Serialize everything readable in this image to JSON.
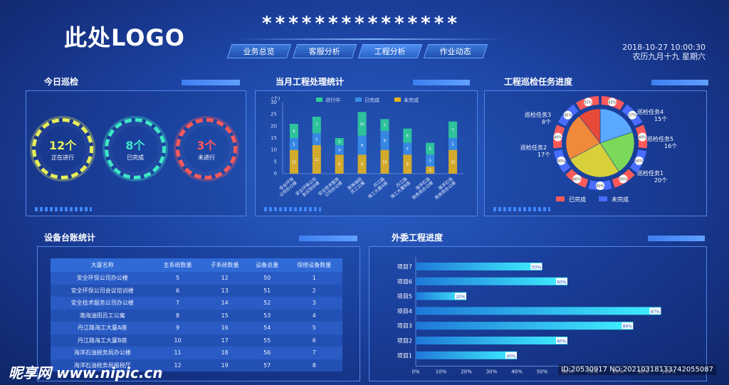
{
  "header": {
    "logo": "此处LOGO",
    "title": "***************",
    "nav": [
      "业务总览",
      "客服分析",
      "工程分析",
      "作业动态"
    ],
    "date": "2018-10-27  10:00:30",
    "lunar": "农历九月十九  星期六"
  },
  "inspection": {
    "title": "今日巡检",
    "gauges": [
      {
        "value": "12个",
        "label": "正在进行",
        "color": "#e9ef5a"
      },
      {
        "value": "8个",
        "label": "已完成",
        "color": "#3ee6c6"
      },
      {
        "value": "3个",
        "label": "未进行",
        "color": "#ff5a5a"
      }
    ]
  },
  "monthly": {
    "title": "当月工程处理统计",
    "unit": "(个)",
    "legend": [
      "进行中",
      "已完成",
      "未完成"
    ],
    "colors": [
      "#2fcf9a",
      "#3a8eea",
      "#e6b41e"
    ],
    "yticks": [
      "0",
      "5",
      "10",
      "15",
      "20",
      "25",
      "30"
    ],
    "chart_data": {
      "type": "bar",
      "categories": [
        "安全环保\n公司办公楼",
        "安全环保公司\n会议培训楼",
        "安全技术服务\n公司办公楼",
        "渤海油田\n员工公寓",
        "丹江路\n海工大厦A座",
        "丹江路\n海工大厦B座",
        "海洋石油\n税务局办公楼",
        "海洋石油\n税务局办公楼"
      ],
      "series": [
        {
          "name": "未完成",
          "values": [
            10,
            12,
            8,
            8,
            10,
            8,
            3,
            10
          ]
        },
        {
          "name": "已完成",
          "values": [
            5,
            5,
            4,
            8,
            8,
            5,
            5,
            5
          ]
        },
        {
          "name": "进行中",
          "values": [
            6,
            7,
            3,
            10,
            5,
            6,
            5,
            7
          ]
        }
      ],
      "ylim": [
        0,
        30
      ]
    }
  },
  "tasks": {
    "title": "工程巡检任务进度",
    "labels": [
      {
        "name": "巡检任务3",
        "count": "8个"
      },
      {
        "name": "巡检任务2",
        "count": "17个"
      },
      {
        "name": "巡检任务4",
        "count": "15个"
      },
      {
        "name": "巡检任务5",
        "count": "16个"
      },
      {
        "name": "巡检任务1",
        "count": "20个"
      }
    ],
    "legend": [
      "已完成",
      "未完成"
    ],
    "legend_colors": [
      "#ff5a5a",
      "#4a6cff"
    ],
    "chart_data": {
      "type": "pie",
      "categories": [
        "巡检任务4",
        "巡检任务5",
        "巡检任务1",
        "巡检任务2",
        "巡检任务3"
      ],
      "values": [
        15,
        16,
        20,
        17,
        8
      ],
      "colors": [
        "#5aa8ff",
        "#7bd85a",
        "#d8d03a",
        "#f08a3a",
        "#e84a3a"
      ],
      "ring_labels": [
        "63%",
        "37%",
        "40%",
        "50%",
        "50%",
        "60%",
        "40%",
        "60%",
        "40%",
        "45%",
        "55%"
      ]
    }
  },
  "devices": {
    "title": "设备台账统计",
    "columns": [
      "大厦名称",
      "主系统数量",
      "子系统数量",
      "设备总量",
      "保修设备数量"
    ],
    "rows": [
      [
        "安全环保公司办公楼",
        "5",
        "12",
        "50",
        "1"
      ],
      [
        "安全环保公司会议培训楼",
        "6",
        "13",
        "51",
        "2"
      ],
      [
        "安全技术服务公司办公楼",
        "7",
        "14",
        "52",
        "3"
      ],
      [
        "渤海油田员工公寓",
        "8",
        "15",
        "53",
        "4"
      ],
      [
        "丹江路海工大厦A座",
        "9",
        "16",
        "54",
        "5"
      ],
      [
        "丹江路海工大厦B座",
        "10",
        "17",
        "55",
        "6"
      ],
      [
        "海洋石油税务局办公楼",
        "11",
        "18",
        "56",
        "7"
      ],
      [
        "海洋石油税务局报税厅",
        "12",
        "19",
        "57",
        "8"
      ]
    ]
  },
  "outsourcing": {
    "title": "外委工程进度",
    "chart_data": {
      "type": "bar",
      "categories": [
        "项目7",
        "项目6",
        "项目5",
        "项目4",
        "项目3",
        "项目2",
        "项目1"
      ],
      "values": [
        50,
        60,
        20,
        97,
        86,
        60,
        40
      ],
      "xticks": [
        "0%",
        "10%",
        "20%",
        "30%",
        "40%",
        "50%",
        "60%",
        "70%",
        "80%",
        "90%",
        "100%"
      ],
      "xlim": [
        0,
        100
      ]
    }
  },
  "watermark": {
    "site": "昵享网 www.nipic.cn",
    "id": "ID:20530917 NO:20210318133742055087"
  }
}
